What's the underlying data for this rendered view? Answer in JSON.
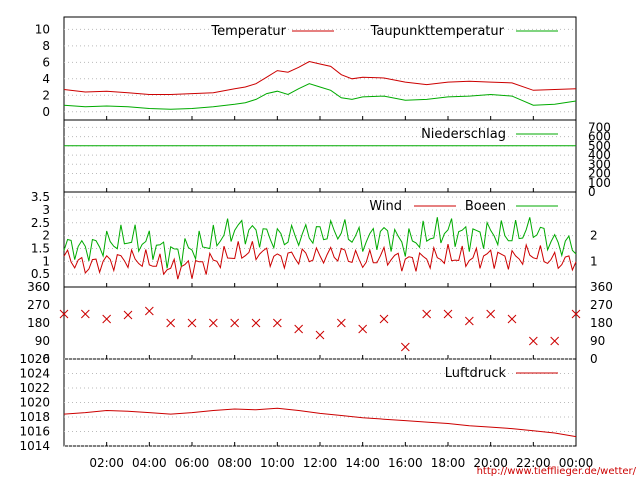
{
  "colors": {
    "red": "#cc0000",
    "green": "#00aa00",
    "credit": "#cc0000",
    "grid": "#bbbbbb"
  },
  "x_axis": {
    "tick_labels": [
      "02:00",
      "04:00",
      "06:00",
      "08:00",
      "10:00",
      "12:00",
      "14:00",
      "16:00",
      "18:00",
      "20:00",
      "22:00",
      "00:00"
    ]
  },
  "credit_text": "http://www.tiefflieger.de/wetter/",
  "chart_data": [
    {
      "type": "line",
      "panel": "temperature",
      "yticks": [
        0,
        2,
        4,
        6,
        8,
        10
      ],
      "ylim": [
        -1,
        11.5
      ],
      "grid": true,
      "legend_position": "top-right",
      "series": [
        {
          "name": "Temperatur",
          "color": "red",
          "x": [
            0,
            1,
            2,
            3,
            4,
            5,
            6,
            7,
            8,
            8.5,
            9,
            9.5,
            10,
            10.5,
            11,
            11.5,
            12,
            12.5,
            13,
            13.5,
            14,
            15,
            16,
            17,
            18,
            19,
            20,
            21,
            22,
            23,
            24
          ],
          "values": [
            2.7,
            2.4,
            2.5,
            2.3,
            2.1,
            2.1,
            2.2,
            2.3,
            2.8,
            3.0,
            3.4,
            4.2,
            5.0,
            4.8,
            5.4,
            6.1,
            5.8,
            5.5,
            4.5,
            4.0,
            4.2,
            4.1,
            3.6,
            3.3,
            3.6,
            3.7,
            3.6,
            3.5,
            2.6,
            2.7,
            2.8
          ]
        },
        {
          "name": "Taupunkttemperatur",
          "color": "green",
          "x": [
            0,
            1,
            2,
            3,
            4,
            5,
            6,
            7,
            8,
            8.5,
            9,
            9.5,
            10,
            10.5,
            11,
            11.5,
            12,
            12.5,
            13,
            13.5,
            14,
            15,
            16,
            17,
            18,
            19,
            20,
            21,
            22,
            23,
            24
          ],
          "values": [
            0.8,
            0.6,
            0.7,
            0.6,
            0.4,
            0.3,
            0.4,
            0.6,
            0.9,
            1.1,
            1.5,
            2.2,
            2.5,
            2.1,
            2.8,
            3.4,
            3.0,
            2.6,
            1.7,
            1.5,
            1.8,
            1.9,
            1.4,
            1.5,
            1.8,
            1.9,
            2.1,
            1.9,
            0.8,
            0.9,
            1.3
          ]
        }
      ]
    },
    {
      "type": "line",
      "panel": "precipitation",
      "yticks": [
        0,
        100,
        200,
        300,
        400,
        500,
        600,
        700
      ],
      "ylim": [
        0,
        780
      ],
      "grid": true,
      "legend_position": "top-right",
      "series": [
        {
          "name": "Niederschlag",
          "color": "green",
          "x": [
            0,
            24
          ],
          "values": [
            500,
            500
          ]
        }
      ]
    },
    {
      "type": "line",
      "panel": "wind",
      "yticks_left": [
        0,
        0.5,
        1,
        1.5,
        2,
        2.5,
        3,
        3.5
      ],
      "yticks_right": [
        1,
        2
      ],
      "ylim": [
        0,
        3.7
      ],
      "grid": true,
      "legend_position": "top-right",
      "series": [
        {
          "name": "Wind",
          "color": "red",
          "x": [
            0,
            1,
            2,
            3,
            4,
            5,
            6,
            7,
            8,
            9,
            10,
            11,
            12,
            13,
            14,
            15,
            16,
            17,
            18,
            19,
            20,
            21,
            22,
            23,
            24
          ],
          "values": [
            1.2,
            0.8,
            1.0,
            1.1,
            1.0,
            0.7,
            0.8,
            1.0,
            1.3,
            1.4,
            1.1,
            1.2,
            1.2,
            1.3,
            1.0,
            1.2,
            1.0,
            1.1,
            1.2,
            1.1,
            1.2,
            1.1,
            1.3,
            1.0,
            1.0
          ]
        },
        {
          "name": "Boeen",
          "color": "green",
          "x": [
            0,
            1,
            2,
            3,
            4,
            5,
            6,
            7,
            8,
            9,
            10,
            11,
            12,
            13,
            14,
            15,
            16,
            17,
            18,
            19,
            20,
            21,
            22,
            23,
            24
          ],
          "values": [
            1.6,
            1.5,
            1.7,
            1.9,
            1.7,
            1.3,
            1.5,
            1.8,
            2.3,
            2.1,
            1.9,
            2.0,
            2.1,
            2.2,
            1.8,
            2.1,
            1.7,
            2.0,
            2.2,
            2.0,
            2.1,
            2.0,
            2.3,
            1.7,
            1.6
          ]
        }
      ]
    },
    {
      "type": "scatter",
      "panel": "wind_direction",
      "yticks": [
        0,
        90,
        180,
        270,
        360
      ],
      "ylim": [
        0,
        360
      ],
      "grid": false,
      "series": [
        {
          "color": "red",
          "x": [
            0,
            1,
            2,
            3,
            4,
            5,
            6,
            7,
            8,
            9,
            10,
            11,
            12,
            13,
            14,
            15,
            16,
            17,
            18,
            19,
            20,
            21,
            22,
            23,
            24
          ],
          "values": [
            225,
            225,
            200,
            220,
            240,
            180,
            180,
            180,
            180,
            180,
            180,
            150,
            120,
            180,
            150,
            200,
            60,
            225,
            225,
            190,
            225,
            200,
            90,
            90,
            225
          ]
        }
      ]
    },
    {
      "type": "line",
      "panel": "pressure",
      "yticks": [
        1014,
        1016,
        1018,
        1020,
        1022,
        1024,
        1026
      ],
      "ylim": [
        1014,
        1026
      ],
      "grid": true,
      "legend_position": "top-right",
      "series": [
        {
          "name": "Luftdruck",
          "color": "red",
          "x": [
            0,
            1,
            2,
            3,
            4,
            5,
            6,
            7,
            8,
            9,
            10,
            11,
            12,
            13,
            14,
            15,
            16,
            17,
            18,
            19,
            20,
            21,
            22,
            23,
            24
          ],
          "values": [
            1018.4,
            1018.6,
            1018.9,
            1018.8,
            1018.6,
            1018.4,
            1018.6,
            1018.9,
            1019.1,
            1019.0,
            1019.2,
            1018.9,
            1018.5,
            1018.2,
            1017.9,
            1017.7,
            1017.5,
            1017.3,
            1017.1,
            1016.8,
            1016.6,
            1016.4,
            1016.1,
            1015.8,
            1015.3
          ]
        }
      ]
    }
  ]
}
